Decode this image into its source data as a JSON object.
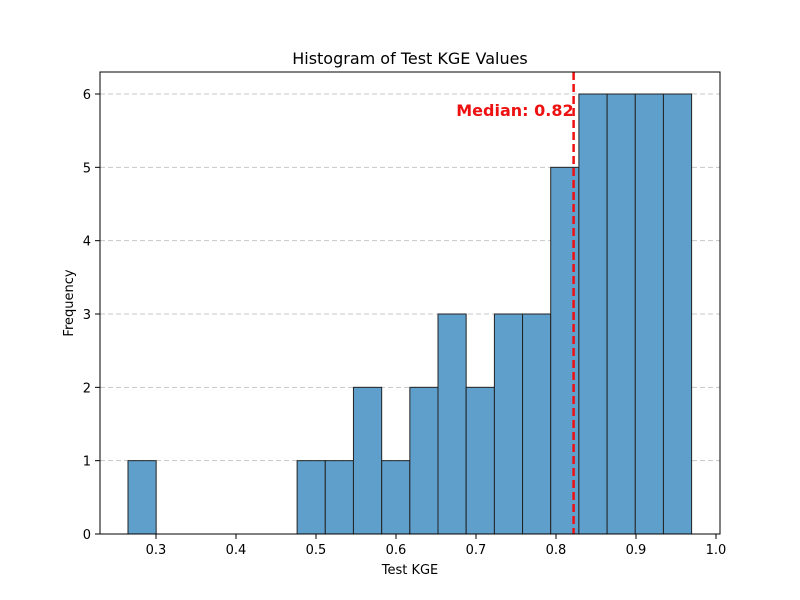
{
  "chart_data": {
    "type": "bar",
    "title": "Histogram of Test KGE Values",
    "xlabel": "Test KGE",
    "ylabel": "Frequency",
    "xlim": [
      0.23,
      1.005
    ],
    "ylim": [
      0,
      6.3
    ],
    "x_ticks": [
      "0.3",
      "0.4",
      "0.5",
      "0.6",
      "0.7",
      "0.8",
      "0.9",
      "1.0"
    ],
    "y_ticks": [
      "0",
      "1",
      "2",
      "3",
      "4",
      "5",
      "6"
    ],
    "bin_edges": [
      0.265,
      0.3002,
      0.3355,
      0.3707,
      0.4059,
      0.4411,
      0.4764,
      0.5116,
      0.5468,
      0.5821,
      0.6173,
      0.6525,
      0.6877,
      0.723,
      0.7582,
      0.7934,
      0.8286,
      0.8639,
      0.8991,
      0.9343,
      0.9695
    ],
    "counts": [
      1,
      0,
      0,
      0,
      0,
      0,
      1,
      1,
      2,
      1,
      2,
      3,
      2,
      3,
      3,
      5,
      6,
      6,
      6,
      6
    ],
    "median": 0.822,
    "median_label": "Median: 0.82",
    "grid": "y-dashed",
    "colors": {
      "bar_fill": "#5f9fcc",
      "bar_edge": "#222222",
      "median_line": "#ee1111",
      "grid": "#c8c8c8"
    }
  }
}
